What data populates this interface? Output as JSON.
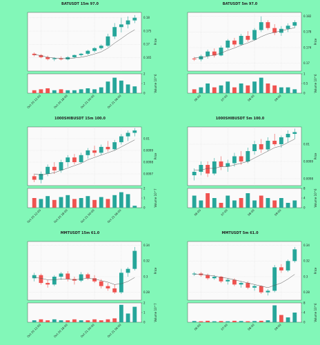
{
  "chart_data": [
    {
      "type": "candlestick",
      "title": "BATUSDT 15m 97.0",
      "ylabel": "Price",
      "vlabel": "Volume  10^6",
      "up_color": "#26a69a",
      "down_color": "#ef5350",
      "ma_color": "#555555",
      "ylim": [
        0.16,
        0.182
      ],
      "yticks": [
        0.165,
        0.17,
        0.175,
        0.18
      ],
      "vlim": [
        0,
        2
      ],
      "vticks": [
        0,
        1,
        2
      ],
      "xlim": [
        -1,
        16
      ],
      "xticks": [
        {
          "value": 1,
          "label": "Oct 20 12:00"
        },
        {
          "value": 5,
          "label": "Oct 20 18:00"
        },
        {
          "value": 9,
          "label": "Oct 21 00:00"
        },
        {
          "value": 13,
          "label": "Oct 21 06:00"
        }
      ],
      "candles": [
        [
          0.1665,
          0.167,
          0.1655,
          0.166
        ],
        [
          0.166,
          0.1664,
          0.1648,
          0.1652
        ],
        [
          0.1652,
          0.1658,
          0.164,
          0.1645
        ],
        [
          0.1645,
          0.1652,
          0.1638,
          0.1648
        ],
        [
          0.1648,
          0.1655,
          0.164,
          0.1644
        ],
        [
          0.1644,
          0.1656,
          0.164,
          0.1652
        ],
        [
          0.1652,
          0.1662,
          0.1648,
          0.166
        ],
        [
          0.166,
          0.1668,
          0.1655,
          0.1665
        ],
        [
          0.1665,
          0.168,
          0.166,
          0.1676
        ],
        [
          0.1676,
          0.169,
          0.167,
          0.1686
        ],
        [
          0.1686,
          0.17,
          0.168,
          0.1695
        ],
        [
          0.1695,
          0.174,
          0.169,
          0.173
        ],
        [
          0.173,
          0.178,
          0.172,
          0.1765
        ],
        [
          0.1765,
          0.18,
          0.1745,
          0.1775
        ],
        [
          0.1775,
          0.1805,
          0.176,
          0.179
        ],
        [
          0.179,
          0.181,
          0.178,
          0.18
        ]
      ],
      "volume": [
        0.3,
        0.4,
        0.5,
        0.3,
        0.4,
        0.3,
        0.3,
        0.4,
        0.5,
        0.4,
        0.6,
        1.2,
        1.6,
        1.3,
        0.9,
        0.7
      ],
      "ma": [
        0.1662,
        0.1658,
        0.1652,
        0.1649,
        0.1647,
        0.1647,
        0.1649,
        0.1652,
        0.1657,
        0.1664,
        0.1672,
        0.1686,
        0.1705,
        0.1722,
        0.174,
        0.1755
      ]
    },
    {
      "type": "candlestick",
      "title": "BATUSDT 5m 97.0",
      "ylabel": "Price",
      "vlabel": "Volume  10^6",
      "up_color": "#26a69a",
      "down_color": "#ef5350",
      "ma_color": "#555555",
      "ylim": [
        0.168,
        0.183
      ],
      "yticks": [
        0.17,
        0.174,
        0.178,
        0.182
      ],
      "vlim": [
        0,
        1
      ],
      "vticks": [
        0,
        0.5,
        1
      ],
      "xlim": [
        -1,
        16
      ],
      "xticks": [
        {
          "value": 1,
          "label": "06:00"
        },
        {
          "value": 5,
          "label": "07:00"
        },
        {
          "value": 9,
          "label": "08:00"
        },
        {
          "value": 13,
          "label": "09:00"
        }
      ],
      "candles": [
        [
          0.1712,
          0.1716,
          0.1706,
          0.171
        ],
        [
          0.171,
          0.1722,
          0.1705,
          0.1718
        ],
        [
          0.1718,
          0.1735,
          0.1712,
          0.173
        ],
        [
          0.173,
          0.1738,
          0.1715,
          0.172
        ],
        [
          0.172,
          0.1745,
          0.1718,
          0.174
        ],
        [
          0.174,
          0.1762,
          0.1735,
          0.1758
        ],
        [
          0.1758,
          0.1765,
          0.1742,
          0.1748
        ],
        [
          0.1748,
          0.1775,
          0.1745,
          0.177
        ],
        [
          0.177,
          0.1782,
          0.1755,
          0.176
        ],
        [
          0.176,
          0.179,
          0.1758,
          0.1785
        ],
        [
          0.1785,
          0.182,
          0.178,
          0.1805
        ],
        [
          0.1805,
          0.181,
          0.1785,
          0.179
        ],
        [
          0.179,
          0.18,
          0.1772,
          0.1778
        ],
        [
          0.1778,
          0.1795,
          0.177,
          0.1788
        ],
        [
          0.1788,
          0.1802,
          0.178,
          0.1796
        ],
        [
          0.1796,
          0.181,
          0.179,
          0.1805
        ]
      ],
      "volume": [
        0.2,
        0.3,
        0.5,
        0.3,
        0.4,
        0.6,
        0.3,
        0.5,
        0.4,
        0.6,
        0.8,
        0.5,
        0.4,
        0.3,
        0.3,
        0.2
      ],
      "ma": [
        0.1715,
        0.1714,
        0.1718,
        0.1721,
        0.1726,
        0.1733,
        0.1739,
        0.1746,
        0.1752,
        0.1759,
        0.1768,
        0.1775,
        0.1779,
        0.1783,
        0.1787,
        0.1791
      ]
    },
    {
      "type": "candlestick",
      "title": "1000SHIBUSDT 15m 100.0",
      "ylabel": "Price",
      "vlabel": "Volume  10^7",
      "up_color": "#26a69a",
      "down_color": "#ef5350",
      "ma_color": "#555555",
      "ylim": [
        0.0096,
        0.0101
      ],
      "yticks": [
        0.0097,
        0.0098,
        0.0099,
        0.01
      ],
      "vlim": [
        0,
        2
      ],
      "vticks": [
        0,
        1,
        2
      ],
      "xlim": [
        -1,
        16
      ],
      "xticks": [
        {
          "value": 1,
          "label": "Oct 20 12:00"
        },
        {
          "value": 5,
          "label": "Oct 20 18:00"
        },
        {
          "value": 9,
          "label": "Oct 21 00:00"
        },
        {
          "value": 13,
          "label": "Oct 21 06:00"
        }
      ],
      "candles": [
        [
          0.00968,
          0.0097,
          0.00963,
          0.00965
        ],
        [
          0.00965,
          0.00972,
          0.00962,
          0.0097
        ],
        [
          0.0097,
          0.00978,
          0.00968,
          0.00976
        ],
        [
          0.00976,
          0.0098,
          0.0097,
          0.00973
        ],
        [
          0.00973,
          0.00982,
          0.00971,
          0.0098
        ],
        [
          0.0098,
          0.00986,
          0.00976,
          0.00984
        ],
        [
          0.00984,
          0.00987,
          0.00978,
          0.0098
        ],
        [
          0.0098,
          0.00988,
          0.00979,
          0.00986
        ],
        [
          0.00986,
          0.00992,
          0.00983,
          0.0099
        ],
        [
          0.0099,
          0.00994,
          0.00985,
          0.00988
        ],
        [
          0.00988,
          0.00995,
          0.00986,
          0.00993
        ],
        [
          0.00993,
          0.00998,
          0.00989,
          0.00991
        ],
        [
          0.00991,
          0.00999,
          0.0099,
          0.00997
        ],
        [
          0.00997,
          0.01004,
          0.00995,
          0.01002
        ],
        [
          0.01002,
          0.01007,
          0.00998,
          0.01005
        ],
        [
          0.01005,
          0.01009,
          0.01002,
          0.01007
        ]
      ],
      "volume": [
        1.0,
        0.9,
        1.2,
        0.8,
        1.1,
        1.3,
        0.9,
        1.0,
        1.2,
        0.8,
        1.1,
        0.9,
        1.3,
        1.6,
        1.4,
        0.2
      ],
      "ma": [
        0.0097,
        0.00969,
        0.0097,
        0.00971,
        0.00973,
        0.00975,
        0.00977,
        0.00979,
        0.00982,
        0.00984,
        0.00986,
        0.00988,
        0.0099,
        0.00993,
        0.00996,
        0.00999
      ]
    },
    {
      "type": "candlestick",
      "title": "1000SHIBUSDT 5m 100.0",
      "ylabel": "Price",
      "vlabel": "Volume  10^6",
      "up_color": "#26a69a",
      "down_color": "#ef5350",
      "ma_color": "#555555",
      "ylim": [
        0.00976,
        0.0101
      ],
      "yticks": [
        0.0098,
        0.0099,
        0.01
      ],
      "vlim": [
        0,
        8
      ],
      "vticks": [
        0,
        4,
        8
      ],
      "xlim": [
        -1,
        16
      ],
      "xticks": [
        {
          "value": 1,
          "label": "06:00"
        },
        {
          "value": 5,
          "label": "07:00"
        },
        {
          "value": 9,
          "label": "08:00"
        },
        {
          "value": 13,
          "label": "09:00"
        }
      ],
      "candles": [
        [
          0.00982,
          0.00986,
          0.00979,
          0.00984
        ],
        [
          0.00984,
          0.0099,
          0.00982,
          0.00988
        ],
        [
          0.00988,
          0.0099,
          0.00981,
          0.00983
        ],
        [
          0.00983,
          0.00992,
          0.00982,
          0.0099
        ],
        [
          0.0099,
          0.00993,
          0.00985,
          0.00987
        ],
        [
          0.00987,
          0.00991,
          0.00984,
          0.00989
        ],
        [
          0.00989,
          0.00995,
          0.00987,
          0.00993
        ],
        [
          0.00993,
          0.00996,
          0.00988,
          0.0099
        ],
        [
          0.0099,
          0.00998,
          0.00989,
          0.00996
        ],
        [
          0.00996,
          0.01002,
          0.00994,
          0.01
        ],
        [
          0.01,
          0.01003,
          0.00995,
          0.00997
        ],
        [
          0.00997,
          0.01004,
          0.00996,
          0.01002
        ],
        [
          0.01002,
          0.01006,
          0.00999,
          0.01
        ],
        [
          0.01,
          0.01005,
          0.00998,
          0.01004
        ],
        [
          0.01004,
          0.01008,
          0.01001,
          0.01006
        ],
        [
          0.01006,
          0.01009,
          0.01003,
          0.01007
        ]
      ],
      "volume": [
        5,
        3,
        6,
        4,
        2,
        5,
        3,
        4,
        6,
        3,
        5,
        4,
        3,
        4,
        2,
        3
      ],
      "ma": [
        0.00985,
        0.00985,
        0.00986,
        0.00986,
        0.00987,
        0.00987,
        0.00988,
        0.00989,
        0.0099,
        0.00992,
        0.00994,
        0.00996,
        0.00998,
        0.00999,
        0.01001,
        0.01003
      ]
    },
    {
      "type": "candlestick",
      "title": "MMTUSDT 15m 61.0",
      "ylabel": "Price",
      "vlabel": "Volume  10^7",
      "up_color": "#26a69a",
      "down_color": "#ef5350",
      "ma_color": "#555555",
      "ylim": [
        0.27,
        0.345
      ],
      "yticks": [
        0.28,
        0.3,
        0.32,
        0.34
      ],
      "vlim": [
        0,
        2
      ],
      "vticks": [
        0,
        1,
        2
      ],
      "xlim": [
        -1,
        16
      ],
      "xticks": [
        {
          "value": 1,
          "label": "Oct 20 12:00"
        },
        {
          "value": 5,
          "label": "Oct 20 18:00"
        },
        {
          "value": 9,
          "label": "Oct 21 00:00"
        },
        {
          "value": 13,
          "label": "Oct 21 06:00"
        }
      ],
      "candles": [
        [
          0.298,
          0.305,
          0.294,
          0.302
        ],
        [
          0.302,
          0.304,
          0.29,
          0.292
        ],
        [
          0.292,
          0.296,
          0.286,
          0.29
        ],
        [
          0.29,
          0.302,
          0.288,
          0.3
        ],
        [
          0.3,
          0.306,
          0.296,
          0.304
        ],
        [
          0.304,
          0.307,
          0.294,
          0.297
        ],
        [
          0.297,
          0.3,
          0.29,
          0.295
        ],
        [
          0.295,
          0.306,
          0.293,
          0.303
        ],
        [
          0.303,
          0.305,
          0.296,
          0.298
        ],
        [
          0.298,
          0.302,
          0.292,
          0.294
        ],
        [
          0.294,
          0.297,
          0.285,
          0.288
        ],
        [
          0.288,
          0.292,
          0.282,
          0.285
        ],
        [
          0.285,
          0.29,
          0.278,
          0.28
        ],
        [
          0.28,
          0.31,
          0.278,
          0.305
        ],
        [
          0.305,
          0.312,
          0.3,
          0.31
        ],
        [
          0.31,
          0.338,
          0.308,
          0.333
        ]
      ],
      "volume": [
        0.2,
        0.3,
        0.2,
        0.3,
        0.2,
        0.2,
        0.3,
        0.2,
        0.2,
        0.3,
        0.2,
        0.3,
        0.4,
        1.8,
        0.9,
        1.6
      ],
      "ma": [
        0.299,
        0.298,
        0.296,
        0.296,
        0.297,
        0.297,
        0.296,
        0.297,
        0.298,
        0.297,
        0.295,
        0.293,
        0.29,
        0.291,
        0.294,
        0.299
      ]
    },
    {
      "type": "candlestick",
      "title": "MMTUSDT 5m 61.0",
      "ylabel": "Price",
      "vlabel": "Volume  10^6",
      "up_color": "#26a69a",
      "down_color": "#ef5350",
      "ma_color": "#555555",
      "ylim": [
        0.27,
        0.345
      ],
      "yticks": [
        0.28,
        0.3,
        0.32,
        0.34
      ],
      "vlim": [
        0,
        8
      ],
      "vticks": [
        0,
        4,
        8
      ],
      "xlim": [
        -1,
        16
      ],
      "xticks": [
        {
          "value": 1,
          "label": "06:00"
        },
        {
          "value": 5,
          "label": "07:00"
        },
        {
          "value": 9,
          "label": "08:00"
        },
        {
          "value": 13,
          "label": "09:00"
        }
      ],
      "candles": [
        [
          0.303,
          0.306,
          0.301,
          0.304
        ],
        [
          0.304,
          0.306,
          0.3,
          0.302
        ],
        [
          0.302,
          0.304,
          0.296,
          0.298
        ],
        [
          0.298,
          0.302,
          0.296,
          0.3
        ],
        [
          0.3,
          0.301,
          0.292,
          0.294
        ],
        [
          0.294,
          0.298,
          0.29,
          0.296
        ],
        [
          0.296,
          0.298,
          0.288,
          0.29
        ],
        [
          0.29,
          0.294,
          0.286,
          0.292
        ],
        [
          0.292,
          0.294,
          0.284,
          0.286
        ],
        [
          0.286,
          0.29,
          0.282,
          0.288
        ],
        [
          0.288,
          0.289,
          0.278,
          0.28
        ],
        [
          0.28,
          0.284,
          0.276,
          0.282
        ],
        [
          0.282,
          0.315,
          0.28,
          0.312
        ],
        [
          0.312,
          0.316,
          0.305,
          0.308
        ],
        [
          0.308,
          0.322,
          0.306,
          0.32
        ],
        [
          0.32,
          0.338,
          0.318,
          0.335
        ]
      ],
      "volume": [
        0.5,
        0.4,
        0.6,
        0.4,
        0.5,
        0.4,
        0.6,
        0.5,
        0.4,
        0.5,
        0.6,
        0.8,
        7,
        3,
        2,
        4
      ],
      "ma": [
        0.303,
        0.303,
        0.302,
        0.301,
        0.299,
        0.298,
        0.296,
        0.294,
        0.292,
        0.29,
        0.288,
        0.286,
        0.289,
        0.292,
        0.297,
        0.303
      ]
    }
  ]
}
